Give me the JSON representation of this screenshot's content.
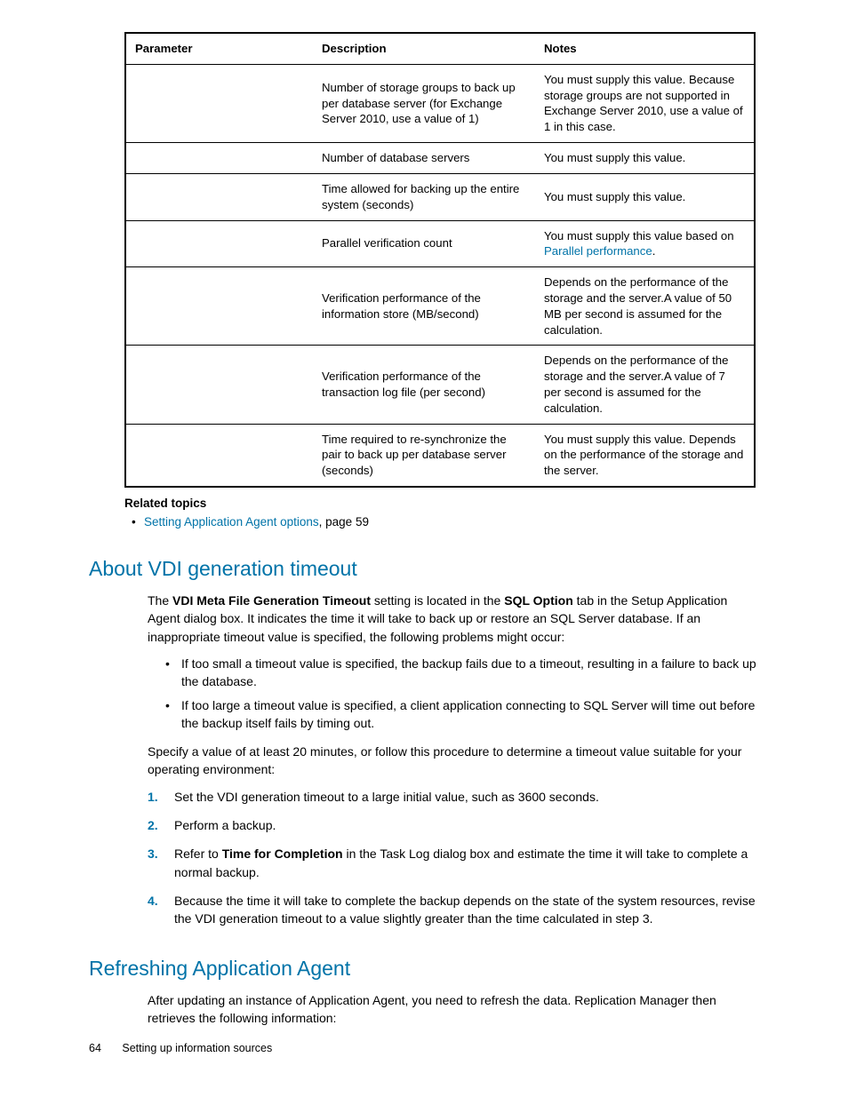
{
  "colors": {
    "link": "#0073a8",
    "heading": "#0073a8",
    "text": "#000000",
    "background": "#ffffff",
    "table_border": "#000000"
  },
  "table": {
    "headers": [
      "Parameter",
      "Description",
      "Notes"
    ],
    "rows": [
      {
        "param": "",
        "desc": "Number of storage groups to back up per database server (for Exchange Server 2010, use a value of 1)",
        "notes_parts": [
          {
            "text": "You must supply this value. Because storage groups are not supported in Exchange Server 2010, use a value of 1 in this case."
          }
        ]
      },
      {
        "param": "",
        "desc": "Number of database servers",
        "notes_parts": [
          {
            "text": "You must supply this value."
          }
        ]
      },
      {
        "param": "",
        "desc": "Time allowed for backing up the entire system (seconds)",
        "notes_parts": [
          {
            "text": "You must supply this value."
          }
        ]
      },
      {
        "param": "",
        "desc": "Parallel verification count",
        "notes_parts": [
          {
            "text": "You must supply this value based on "
          },
          {
            "text": "Parallel performance",
            "link": true
          },
          {
            "text": "."
          }
        ]
      },
      {
        "param": "",
        "desc": "Verification performance of the information store (MB/second)",
        "notes_parts": [
          {
            "text": "Depends on the performance of the storage and the server.A value of 50 MB per second is assumed for the calculation."
          }
        ]
      },
      {
        "param": "",
        "desc": "Verification performance of the transaction log file (per second)",
        "notes_parts": [
          {
            "text": "Depends on the performance of the storage and the server.A value of 7 per second is assumed for the calculation."
          }
        ]
      },
      {
        "param": "",
        "desc": "Time required to re-synchronize the pair to back up per database server (seconds)",
        "notes_parts": [
          {
            "text": "You must supply this value. Depends on the performance of the storage and the server."
          }
        ]
      }
    ]
  },
  "related": {
    "heading": "Related topics",
    "items": [
      {
        "link_text": "Setting Application Agent options",
        "suffix": ", page 59"
      }
    ]
  },
  "section1": {
    "heading": "About VDI generation timeout",
    "intro_parts": [
      {
        "text": "The "
      },
      {
        "text": "VDI Meta File Generation Timeout",
        "bold": true
      },
      {
        "text": " setting is located in the "
      },
      {
        "text": "SQL Option",
        "bold": true
      },
      {
        "text": " tab in the Setup Application Agent dialog box. It indicates the time it will take to back up or restore an SQL Server database. If an inappropriate timeout value is specified, the following problems might occur:"
      }
    ],
    "bullets": [
      "If too small a timeout value is specified, the backup fails due to a timeout, resulting in a failure to back up the database.",
      "If too large a timeout value is specified, a client application connecting to SQL Server will time out before the backup itself fails by timing out."
    ],
    "mid": "Specify a value of at least 20 minutes, or follow this procedure to determine a timeout value suitable for your operating environment:",
    "steps": [
      {
        "parts": [
          {
            "text": "Set the VDI generation timeout to a large initial value, such as 3600 seconds."
          }
        ]
      },
      {
        "parts": [
          {
            "text": "Perform a backup."
          }
        ]
      },
      {
        "parts": [
          {
            "text": "Refer to "
          },
          {
            "text": "Time for Completion",
            "bold": true
          },
          {
            "text": " in the Task Log dialog box and estimate the time it will take to complete a normal backup."
          }
        ]
      },
      {
        "parts": [
          {
            "text": "Because the time it will take to complete the backup depends on the state of the system resources, revise the VDI generation timeout to a value slightly greater than the time calculated in step 3."
          }
        ]
      }
    ]
  },
  "section2": {
    "heading": "Refreshing Application Agent",
    "body": "After updating an instance of Application Agent, you need to refresh the data. Replication Manager then retrieves the following information:"
  },
  "footer": {
    "page": "64",
    "title": "Setting up information sources"
  }
}
